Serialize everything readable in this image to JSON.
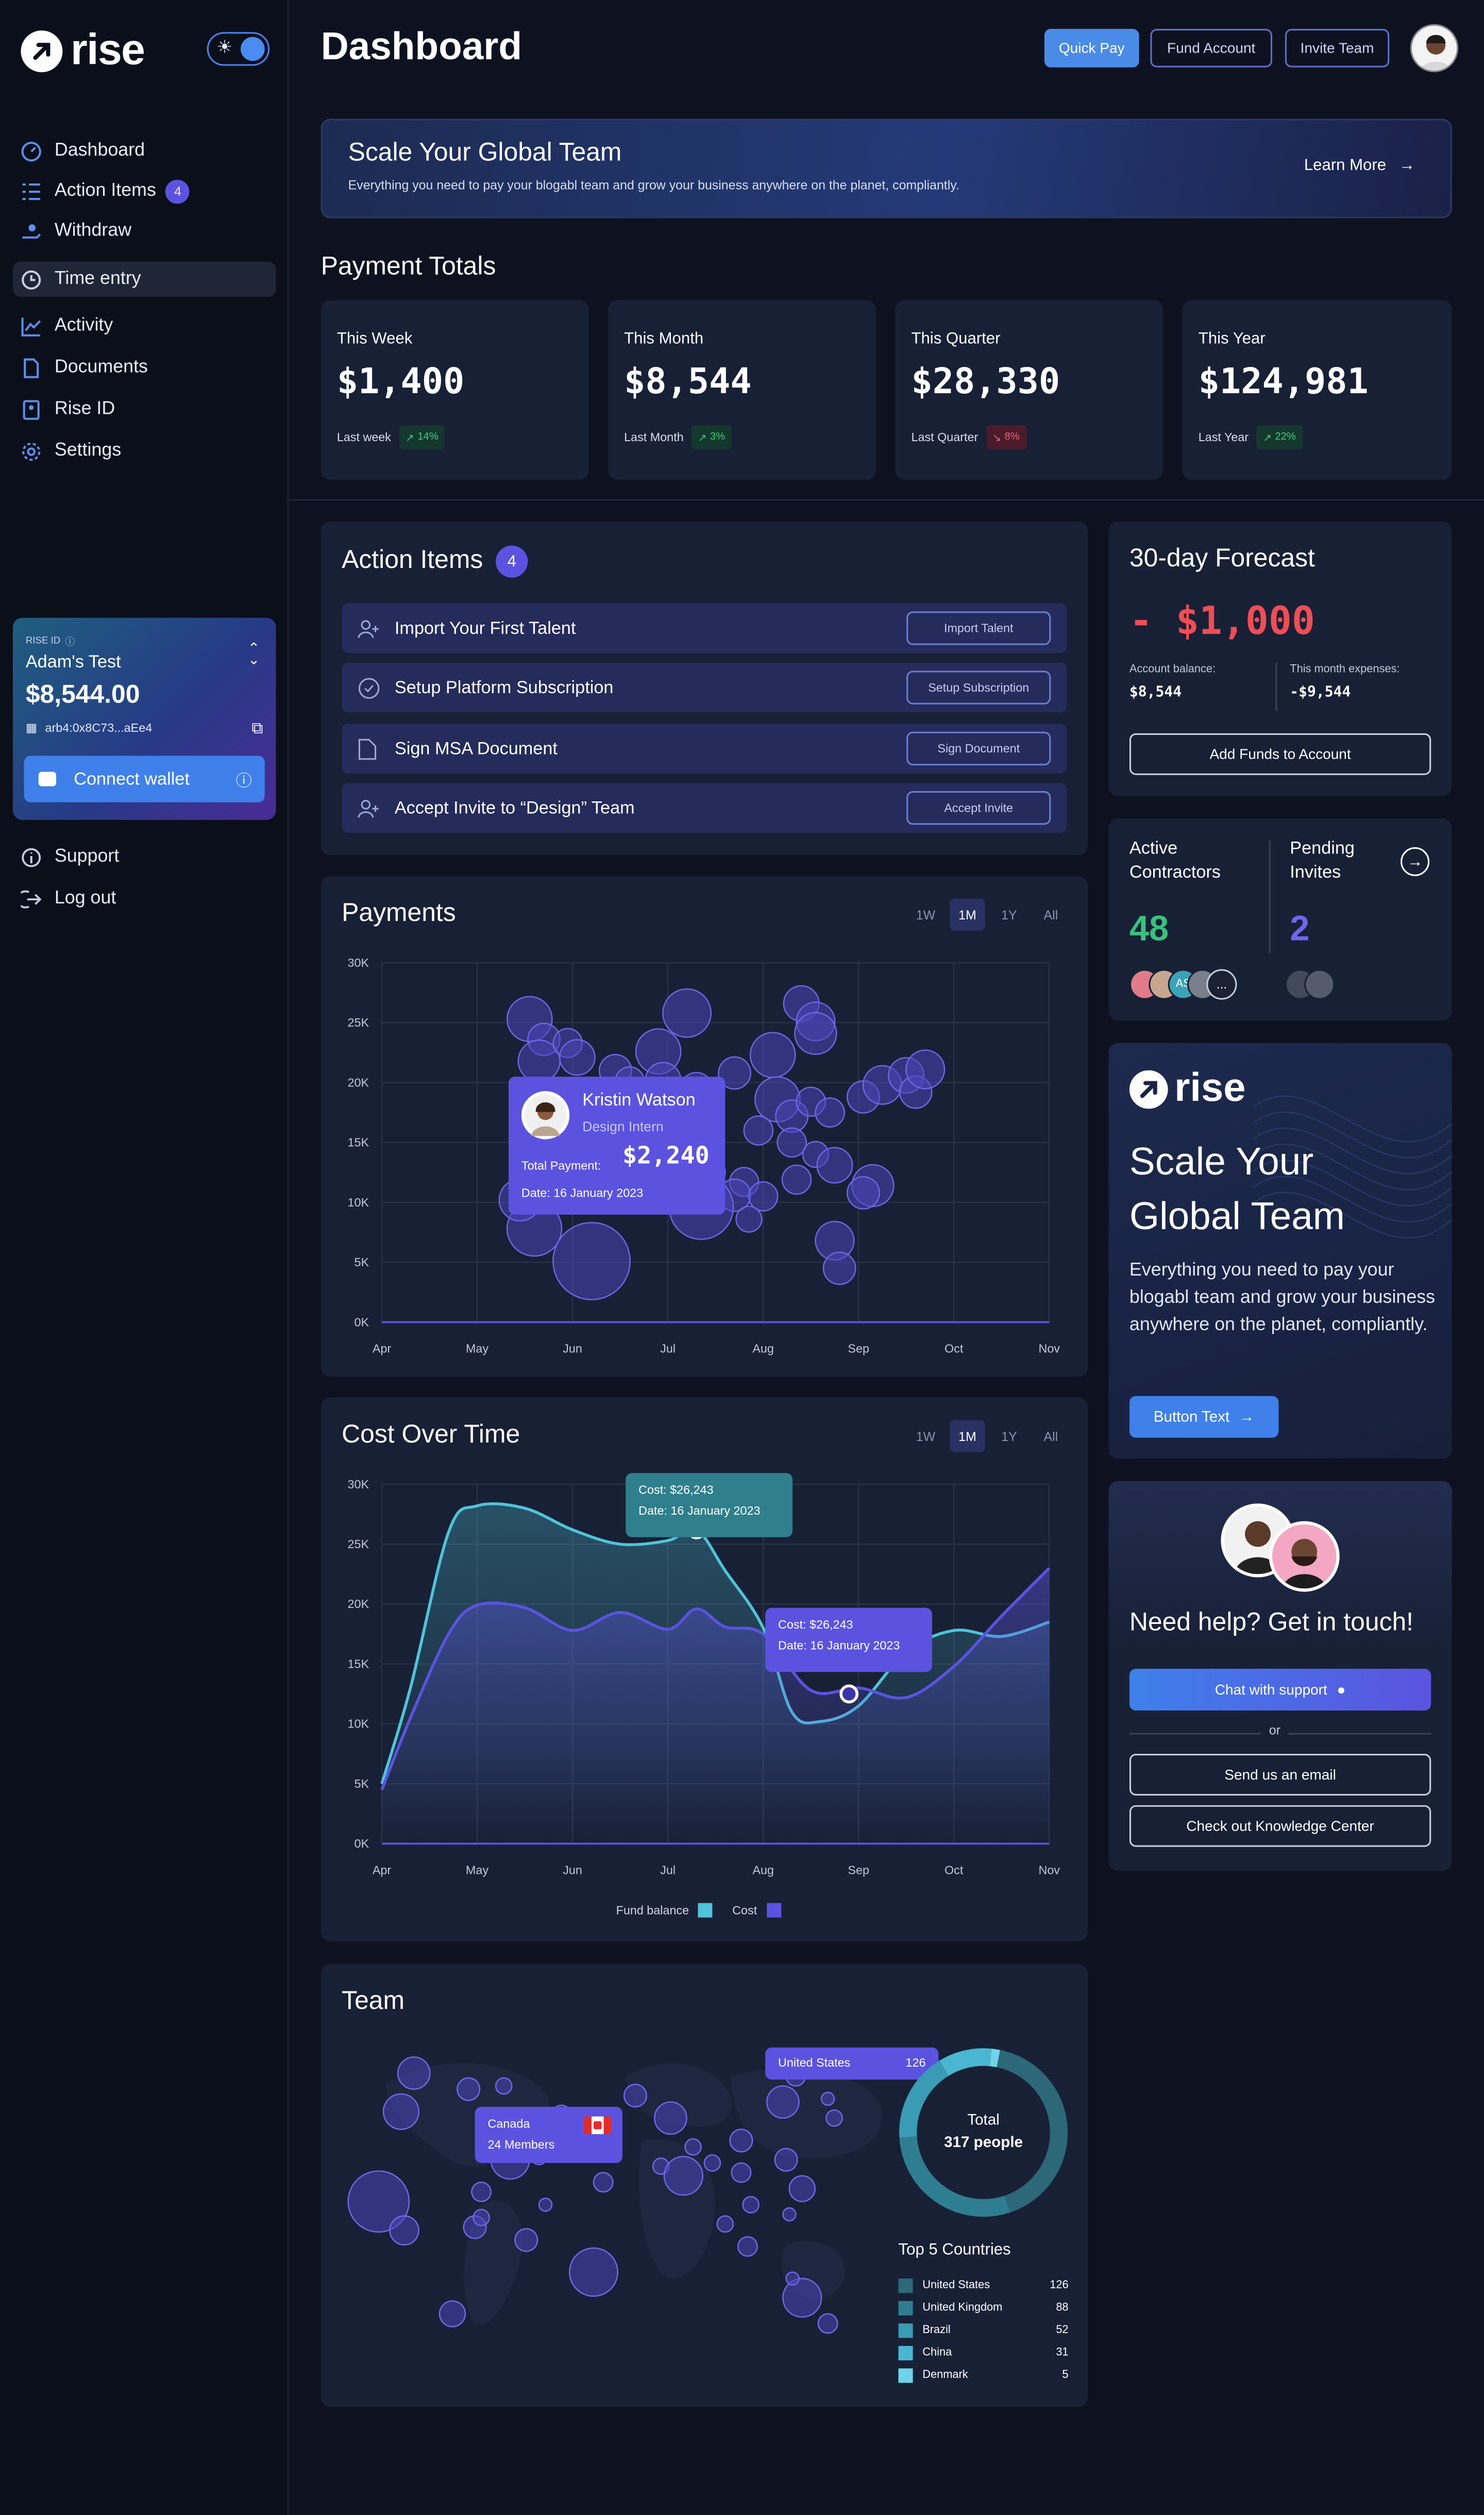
{
  "app": {
    "logo": "rise",
    "page_title": "Dashboard"
  },
  "sidebar": {
    "items": [
      {
        "label": "Dashboard",
        "icon": "dashboard-icon"
      },
      {
        "label": "Action Items",
        "icon": "list-check-icon",
        "badge": "4"
      },
      {
        "label": "Withdraw",
        "icon": "hand-money-icon"
      },
      {
        "label": "Time entry",
        "icon": "clock-icon",
        "active": true
      },
      {
        "label": "Activity",
        "icon": "chart-line-icon"
      },
      {
        "label": "Documents",
        "icon": "document-icon"
      },
      {
        "label": "Rise ID",
        "icon": "id-badge-icon"
      },
      {
        "label": "Settings",
        "icon": "gear-icon"
      }
    ],
    "rise_card": {
      "label": "RISE ID",
      "name": "Adam's Test",
      "balance": "$8,544.00",
      "address": "arb4:0x8C73...aEe4",
      "button": "Connect wallet"
    },
    "support": "Support",
    "logout": "Log out"
  },
  "header": {
    "quick_pay": "Quick Pay",
    "fund_account": "Fund Account",
    "invite_team": "Invite Team"
  },
  "banner": {
    "title": "Scale Your Global Team",
    "text": "Everything you need to pay your blogabl team and grow your business anywhere on the planet, compliantly.",
    "cta": "Learn More"
  },
  "totals": {
    "title": "Payment Totals",
    "cards": [
      {
        "label": "This Week",
        "value": "$1,400",
        "period": "Last week",
        "change": "14%",
        "dir": "up"
      },
      {
        "label": "This Month",
        "value": "$8,544",
        "period": "Last Month",
        "change": "3%",
        "dir": "up"
      },
      {
        "label": "This Quarter",
        "value": "$28,330",
        "period": "Last Quarter",
        "change": "8%",
        "dir": "down"
      },
      {
        "label": "This Year",
        "value": "$124,981",
        "period": "Last Year",
        "change": "22%",
        "dir": "up"
      }
    ]
  },
  "action_items": {
    "title": "Action Items",
    "count": "4",
    "rows": [
      {
        "label": "Import Your First Talent",
        "button": "Import Talent",
        "icon": "user-plus-icon"
      },
      {
        "label": "Setup Platform Subscription",
        "button": "Setup Subscription",
        "icon": "check-circle-icon"
      },
      {
        "label": "Sign MSA Document",
        "button": "Sign Document",
        "icon": "document-icon"
      },
      {
        "label": "Accept Invite to “Design” Team",
        "button": "Accept Invite",
        "icon": "user-plus-icon"
      }
    ]
  },
  "ranges": [
    "1W",
    "1M",
    "1Y",
    "All"
  ],
  "payments": {
    "title": "Payments",
    "tooltip": {
      "name": "Kristin Watson",
      "role": "Design Intern",
      "total_label": "Total Payment:",
      "total": "$2,240",
      "date": "Date: 16 January 2023"
    }
  },
  "cost": {
    "title": "Cost Over Time",
    "tooltip1": {
      "cost": "Cost: $26,243",
      "date": "Date: 16 January 2023"
    },
    "tooltip2": {
      "cost": "Cost: $26,243",
      "date": "Date: 16 January 2023"
    },
    "legend": [
      "Fund balance",
      "Cost"
    ]
  },
  "team": {
    "title": "Team",
    "map_tip1": {
      "country": "Canada",
      "members": "24 Members"
    },
    "map_tip2": {
      "country": "United States",
      "count": "126"
    },
    "donut": {
      "label": "Total",
      "value": "317 people"
    },
    "top_title": "Top 5 Countries",
    "countries": [
      {
        "name": "United States",
        "count": "126",
        "color": "#2c6878"
      },
      {
        "name": "United Kingdom",
        "count": "88",
        "color": "#2f7d91"
      },
      {
        "name": "Brazil",
        "count": "52",
        "color": "#3a9bb4"
      },
      {
        "name": "China",
        "count": "31",
        "color": "#4ab7d2"
      },
      {
        "name": "Denmark",
        "count": "5",
        "color": "#6fd3ea"
      }
    ]
  },
  "forecast": {
    "title": "30-day Forecast",
    "amount": "- $1,000",
    "balance_label": "Account balance:",
    "balance": "$8,544",
    "expenses_label": "This month expenses:",
    "expenses": "-$9,544",
    "button": "Add Funds to Account"
  },
  "contractors": {
    "label1": "Active Contractors",
    "value1": "48",
    "label2": "Pending Invites",
    "value2": "2",
    "initials": "AS",
    "more": "..."
  },
  "promo": {
    "logo": "rise",
    "title": "Scale Your Global Team",
    "text": "Everything you need to pay your blogabl team and grow your business anywhere on the planet, compliantly.",
    "button": "Button Text"
  },
  "help": {
    "title": "Need help? Get in touch!",
    "chat": "Chat with support",
    "or": "or",
    "email": "Send us an email",
    "kb": "Check out Knowledge Center"
  },
  "chart_data": [
    {
      "type": "scatter",
      "title": "Payments",
      "x_ticks": [
        "Apr",
        "May",
        "Jun",
        "Jul",
        "Aug",
        "Sep",
        "Oct",
        "Nov"
      ],
      "y_ticks": [
        "0K",
        "5K",
        "10K",
        "15K",
        "20K",
        "25K",
        "30K"
      ],
      "ylim": [
        0,
        30000
      ],
      "points": [
        {
          "x": 1.55,
          "y": 25300,
          "r": 1
        },
        {
          "x": 1.7,
          "y": 23600,
          "r": 0.6
        },
        {
          "x": 1.65,
          "y": 21800,
          "r": 0.9
        },
        {
          "x": 1.95,
          "y": 23300,
          "r": 0.5
        },
        {
          "x": 2.05,
          "y": 22100,
          "r": 0.7
        },
        {
          "x": 2.45,
          "y": 21000,
          "r": 0.6
        },
        {
          "x": 2.9,
          "y": 22600,
          "r": 1
        },
        {
          "x": 3.2,
          "y": 25800,
          "r": 1.1
        },
        {
          "x": 2.95,
          "y": 20200,
          "r": 0.7
        },
        {
          "x": 2.6,
          "y": 20100,
          "r": 0.5
        },
        {
          "x": 3.3,
          "y": 19500,
          "r": 0.6
        },
        {
          "x": 3.7,
          "y": 20800,
          "r": 0.6
        },
        {
          "x": 4.1,
          "y": 22300,
          "r": 1
        },
        {
          "x": 4.4,
          "y": 26600,
          "r": 0.7
        },
        {
          "x": 4.55,
          "y": 25100,
          "r": 0.8
        },
        {
          "x": 4.55,
          "y": 24100,
          "r": 0.9
        },
        {
          "x": 4.15,
          "y": 18600,
          "r": 1
        },
        {
          "x": 4.3,
          "y": 17200,
          "r": 0.6
        },
        {
          "x": 4.5,
          "y": 18400,
          "r": 0.5
        },
        {
          "x": 4.7,
          "y": 17500,
          "r": 0.5
        },
        {
          "x": 5.05,
          "y": 18800,
          "r": 0.6
        },
        {
          "x": 5.25,
          "y": 19800,
          "r": 0.8
        },
        {
          "x": 5.5,
          "y": 20600,
          "r": 0.7
        },
        {
          "x": 5.6,
          "y": 19200,
          "r": 0.6
        },
        {
          "x": 5.7,
          "y": 21100,
          "r": 0.8
        },
        {
          "x": 3.95,
          "y": 16000,
          "r": 0.5
        },
        {
          "x": 4.3,
          "y": 15000,
          "r": 0.5
        },
        {
          "x": 4.55,
          "y": 14000,
          "r": 0.4
        },
        {
          "x": 4.75,
          "y": 13100,
          "r": 0.7
        },
        {
          "x": 4.35,
          "y": 11900,
          "r": 0.5
        },
        {
          "x": 5.15,
          "y": 11400,
          "r": 0.9
        },
        {
          "x": 5.05,
          "y": 10800,
          "r": 0.6
        },
        {
          "x": 3.8,
          "y": 11700,
          "r": 0.5
        },
        {
          "x": 3.7,
          "y": 10600,
          "r": 0.6
        },
        {
          "x": 4.0,
          "y": 10500,
          "r": 0.5
        },
        {
          "x": 3.45,
          "y": 12500,
          "r": 0.5
        },
        {
          "x": 3.35,
          "y": 9600,
          "r": 1.6
        },
        {
          "x": 3.85,
          "y": 8600,
          "r": 0.4
        },
        {
          "x": 4.75,
          "y": 6800,
          "r": 0.8
        },
        {
          "x": 4.8,
          "y": 4500,
          "r": 0.6
        },
        {
          "x": 1.6,
          "y": 7800,
          "r": 1.3
        },
        {
          "x": 2.2,
          "y": 5100,
          "r": 2.0
        },
        {
          "x": 1.45,
          "y": 10200,
          "r": 0.9
        }
      ]
    },
    {
      "type": "line",
      "title": "Cost Over Time",
      "x_ticks": [
        "Apr",
        "May",
        "Jun",
        "Jul",
        "Aug",
        "Sep",
        "Oct",
        "Nov"
      ],
      "y_ticks": [
        "0K",
        "5K",
        "10K",
        "15K",
        "20K",
        "25K",
        "30K"
      ],
      "ylim": [
        0,
        30000
      ],
      "series": [
        {
          "name": "Fund balance",
          "color": "#4fc3d8",
          "x": [
            0,
            0.3,
            0.7,
            1,
            1.5,
            2,
            2.5,
            3,
            3.3,
            3.6,
            4,
            4.3,
            4.6,
            5,
            5.5,
            6,
            6.5,
            7
          ],
          "values": [
            5000,
            13000,
            26000,
            28200,
            28000,
            26200,
            25000,
            25300,
            26200,
            22800,
            18000,
            11000,
            10200,
            11500,
            16000,
            17800,
            17300,
            18500
          ]
        },
        {
          "name": "Cost",
          "color": "#5b53e0",
          "x": [
            0,
            0.3,
            0.7,
            1,
            1.5,
            2,
            2.5,
            3,
            3.3,
            3.6,
            4,
            4.5,
            5,
            5.5,
            6,
            6.5,
            7
          ],
          "values": [
            4500,
            10500,
            17500,
            19900,
            19700,
            17800,
            19300,
            17900,
            19600,
            18100,
            17500,
            12800,
            13000,
            12200,
            14800,
            19000,
            23000
          ]
        }
      ]
    },
    {
      "type": "pie",
      "title": "Team",
      "categories": [
        "United States",
        "United Kingdom",
        "Brazil",
        "China",
        "Denmark"
      ],
      "values": [
        126,
        88,
        52,
        31,
        5
      ]
    }
  ]
}
